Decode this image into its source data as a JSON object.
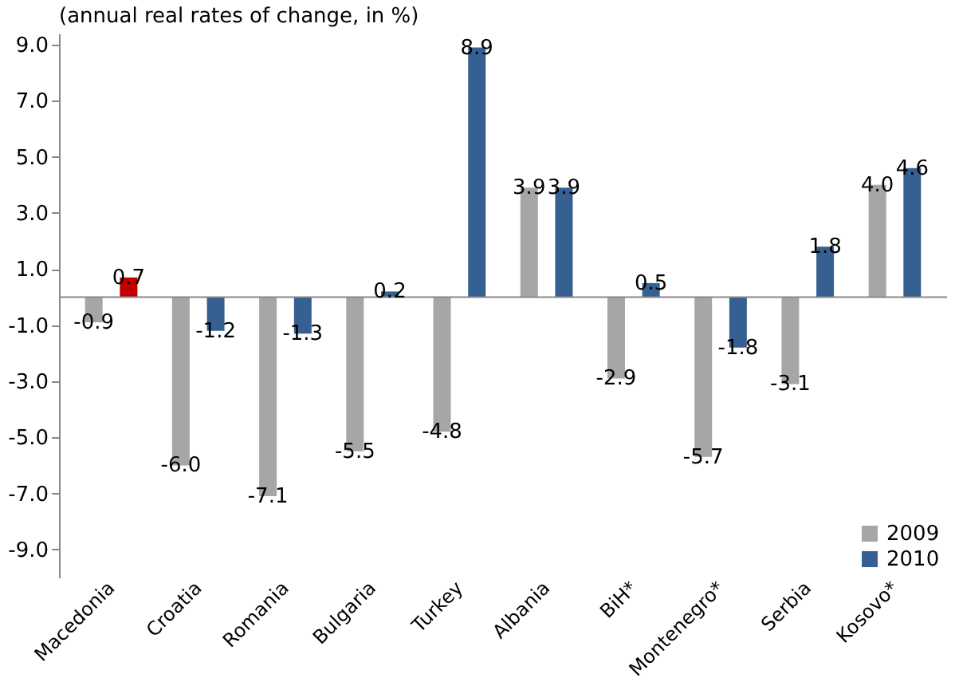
{
  "chart_data": {
    "type": "bar",
    "title": "(annual real rates of change, in %)",
    "categories": [
      "Macedonia",
      "Croatia",
      "Romania",
      "Bulgaria",
      "Turkey",
      "Albania",
      "BiH*",
      "Montenegro*",
      "Serbia",
      "Kosovo*"
    ],
    "series": [
      {
        "name": "2009",
        "color": "#a6a6a6",
        "values": [
          -0.9,
          -6.0,
          -7.1,
          -5.5,
          -4.8,
          3.9,
          -2.9,
          -5.7,
          -3.1,
          4.0
        ],
        "value_labels": [
          "-0.9",
          "-6.0",
          "-7.1",
          "-5.5",
          "-4.8",
          "3.9",
          "-2.9",
          "-5.7",
          "-3.1",
          "4.0"
        ]
      },
      {
        "name": "2010",
        "color": "#366092",
        "colors": [
          "#c00000",
          "#366092",
          "#366092",
          "#366092",
          "#366092",
          "#366092",
          "#366092",
          "#366092",
          "#366092",
          "#366092"
        ],
        "values": [
          0.7,
          -1.2,
          -1.3,
          0.2,
          8.9,
          3.9,
          0.5,
          -1.8,
          1.8,
          4.6
        ],
        "value_labels": [
          "0.7",
          "-1.2",
          "-1.3",
          "0.2",
          "8.9",
          "3.9",
          "0.5",
          "-1.8",
          "1.8",
          "4.6"
        ]
      }
    ],
    "ylim": [
      -10,
      9.4
    ],
    "yticks": [
      {
        "value": 9,
        "label": "9.0"
      },
      {
        "value": 7,
        "label": "7.0"
      },
      {
        "value": 5,
        "label": "5.0"
      },
      {
        "value": 3,
        "label": "3.0"
      },
      {
        "value": 1,
        "label": "1.0"
      },
      {
        "value": -1,
        "label": "-1.0"
      },
      {
        "value": -3,
        "label": "-3.0"
      },
      {
        "value": -5,
        "label": "-5.0"
      },
      {
        "value": -7,
        "label": "-7.0"
      },
      {
        "value": -9,
        "label": "-9.0"
      }
    ],
    "legend": "bottom right",
    "grid": false
  }
}
